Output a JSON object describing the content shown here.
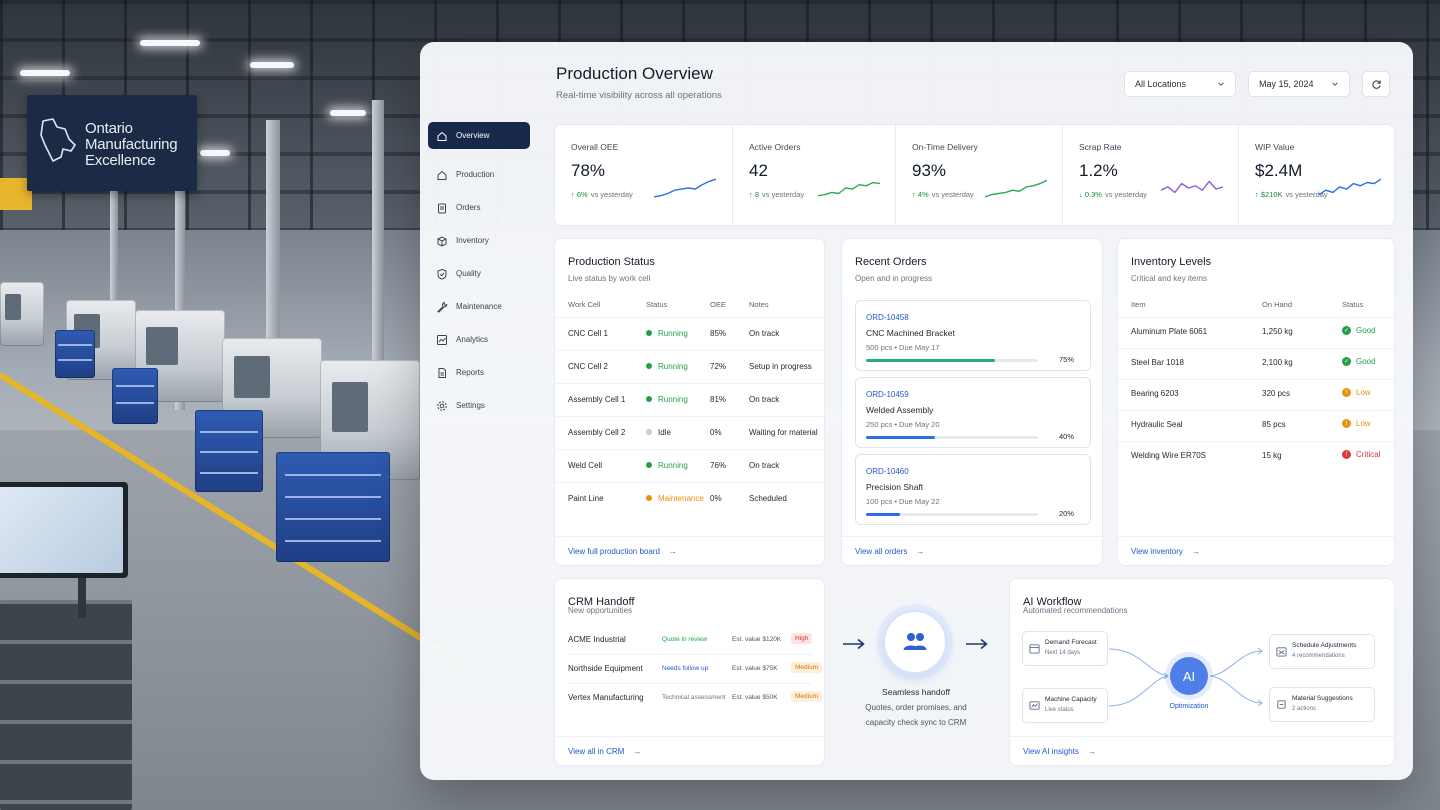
{
  "sign": {
    "line1": "Ontario",
    "line2": "Manufacturing",
    "line3": "Excellence"
  },
  "sidebar": {
    "items": [
      {
        "label": "Overview",
        "icon": "home-icon",
        "active": true
      },
      {
        "label": "Production",
        "icon": "home-icon"
      },
      {
        "label": "Orders",
        "icon": "clipboard-icon"
      },
      {
        "label": "Inventory",
        "icon": "box-icon"
      },
      {
        "label": "Quality",
        "icon": "shield-check-icon"
      },
      {
        "label": "Maintenance",
        "icon": "wrench-icon"
      },
      {
        "label": "Analytics",
        "icon": "chart-icon"
      },
      {
        "label": "Reports",
        "icon": "document-icon"
      },
      {
        "label": "Settings",
        "icon": "gear-icon"
      }
    ]
  },
  "header": {
    "title": "Production Overview",
    "subtitle": "Real-time visibility across all operations",
    "location": "All Locations",
    "date": "May 15, 2024"
  },
  "kpis": [
    {
      "label": "Overall OEE",
      "value": "78%",
      "delta": "6%",
      "direction": "up",
      "compare": "vs yesterday",
      "color": "#2f6ee0"
    },
    {
      "label": "Active Orders",
      "value": "42",
      "delta": "8",
      "direction": "up",
      "compare": "vs yesterday",
      "color": "#2faa55"
    },
    {
      "label": "On-Time Delivery",
      "value": "93%",
      "delta": "4%",
      "direction": "up",
      "compare": "vs yesterday",
      "color": "#2faa55"
    },
    {
      "label": "Scrap Rate",
      "value": "1.2%",
      "delta": "0.3%",
      "direction": "down",
      "compare": "vs yesterday",
      "color": "#8d5fd6"
    },
    {
      "label": "WIP Value",
      "value": "$2.4M",
      "delta": "$210K",
      "direction": "up",
      "compare": "vs yesterday",
      "color": "#2f6ee0"
    }
  ],
  "production_status": {
    "title": "Production Status",
    "subtitle": "Live status by work cell",
    "columns": [
      "Work Cell",
      "Status",
      "OEE",
      "Notes"
    ],
    "rows": [
      {
        "cell": "CNC Cell 1",
        "status": "Running",
        "oee": "85%",
        "notes": "On track",
        "color": "#23a04a"
      },
      {
        "cell": "CNC Cell 2",
        "status": "Running",
        "oee": "72%",
        "notes": "Setup in progress",
        "color": "#23a04a"
      },
      {
        "cell": "Assembly Cell 1",
        "status": "Running",
        "oee": "81%",
        "notes": "On track",
        "color": "#23a04a"
      },
      {
        "cell": "Assembly Cell 2",
        "status": "Idle",
        "oee": "0%",
        "notes": "Waiting for material",
        "color": "#c9ced6"
      },
      {
        "cell": "Weld Cell",
        "status": "Running",
        "oee": "76%",
        "notes": "On track",
        "color": "#23a04a"
      },
      {
        "cell": "Paint Line",
        "status": "Maintenance",
        "oee": "0%",
        "notes": "Scheduled",
        "color": "#e8920f"
      }
    ],
    "link": "View full production board"
  },
  "recent_orders": {
    "title": "Recent Orders",
    "subtitle": "Open and in progress",
    "orders": [
      {
        "id": "ORD-10458",
        "name": "CNC Machined Bracket",
        "meta": "500 pcs • Due May 17",
        "progress": 0.75,
        "pct": "75%",
        "color": "#25b07a"
      },
      {
        "id": "ORD-10459",
        "name": "Welded Assembly",
        "meta": "250 pcs • Due May 20",
        "progress": 0.4,
        "pct": "40%",
        "color": "#2f6ee0"
      },
      {
        "id": "ORD-10460",
        "name": "Precision Shaft",
        "meta": "100 pcs • Due May 22",
        "progress": 0.2,
        "pct": "20%",
        "color": "#2f6ee0"
      }
    ],
    "link": "View all orders"
  },
  "inventory": {
    "title": "Inventory Levels",
    "subtitle": "Critical and key items",
    "columns": [
      "Item",
      "On Hand",
      "Status"
    ],
    "rows": [
      {
        "item": "Aluminum Plate 6061",
        "on_hand": "1,250 kg",
        "status": "Good",
        "color": "#23a04a",
        "mark": "✓"
      },
      {
        "item": "Steel Bar 1018",
        "on_hand": "2,100 kg",
        "status": "Good",
        "color": "#23a04a",
        "mark": "✓"
      },
      {
        "item": "Bearing 6203",
        "on_hand": "320 pcs",
        "status": "Low",
        "color": "#e8920f",
        "mark": "!"
      },
      {
        "item": "Hydraulic Seal",
        "on_hand": "85 pcs",
        "status": "Low",
        "color": "#e8920f",
        "mark": "!"
      },
      {
        "item": "Welding Wire ER70S",
        "on_hand": "15 kg",
        "status": "Critical",
        "color": "#d93a3a",
        "mark": "!"
      }
    ],
    "link": "View inventory"
  },
  "crm": {
    "title": "CRM Handoff",
    "subtitle": "New opportunities",
    "rows": [
      {
        "company": "ACME Industrial",
        "stage": "Quote in review",
        "value": "Est. value $120K",
        "priority": "High",
        "stage_color": "#23a04a",
        "tag_bg": "#fde3e3",
        "tag_fg": "#c53a3a"
      },
      {
        "company": "Northside Equipment",
        "stage": "Needs follow up",
        "value": "Est. value $75K",
        "priority": "Medium",
        "stage_color": "#2458c9",
        "tag_bg": "#fdefd9",
        "tag_fg": "#c9780c"
      },
      {
        "company": "Vertex Manufacturing",
        "stage": "Technical assessment",
        "value": "Est. value $50K",
        "priority": "Medium",
        "stage_color": "#6a7482",
        "tag_bg": "#fdefd9",
        "tag_fg": "#c9780c"
      }
    ],
    "link": "View all in CRM"
  },
  "handoff": {
    "title": "Seamless handoff",
    "line1": "Quotes, order promises, and",
    "line2": "capacity check sync to CRM"
  },
  "ai_workflow": {
    "title": "AI Workflow",
    "subtitle": "Automated recommendations",
    "inputs": [
      {
        "title": "Demand Forecast",
        "sub": "Next 14 days"
      },
      {
        "title": "Machine Capacity",
        "sub": "Live status"
      }
    ],
    "core": "AI",
    "core_label": "Optimization",
    "outputs": [
      {
        "title": "Schedule Adjustments",
        "sub": "4 recommendations"
      },
      {
        "title": "Material Suggestions",
        "sub": "2 actions"
      }
    ],
    "link": "View AI insights"
  }
}
